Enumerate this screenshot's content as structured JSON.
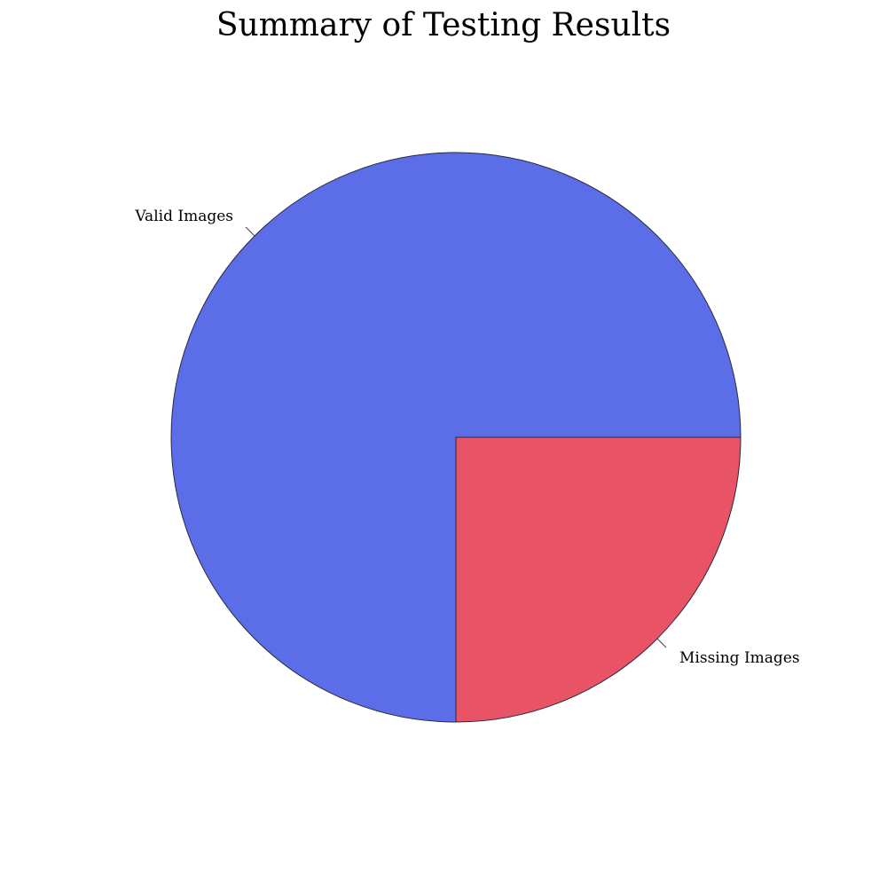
{
  "chart_data": {
    "type": "pie",
    "title": "Summary of Testing Results",
    "slices": [
      {
        "label": "Valid Images",
        "value": 75,
        "color": "#5b6ee8"
      },
      {
        "label": "Missing Images",
        "value": 25,
        "color": "#e85466"
      }
    ],
    "start_angle_deg": 90,
    "direction": "clockwise",
    "legend": "none",
    "labels": "outside"
  }
}
